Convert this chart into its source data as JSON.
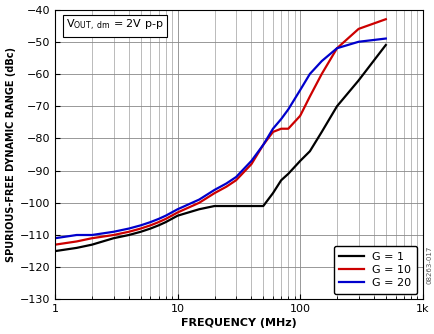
{
  "xlabel": "FREQUENCY (MHz)",
  "ylabel": "SPURIOUS-FREE DYNAMIC RANGE (dBc)",
  "xlim": [
    1,
    1000
  ],
  "ylim": [
    -130,
    -40
  ],
  "yticks": [
    -130,
    -120,
    -110,
    -100,
    -90,
    -80,
    -70,
    -60,
    -50,
    -40
  ],
  "background_color": "#ffffff",
  "grid_color": "#888888",
  "annotation": "V",
  "series": [
    {
      "label": "G = 1",
      "color": "#000000",
      "linewidth": 1.6,
      "freq": [
        1,
        1.5,
        2,
        3,
        4,
        5,
        6,
        7,
        8,
        10,
        15,
        20,
        25,
        30,
        40,
        50,
        60,
        70,
        80,
        100,
        120,
        150,
        200,
        300,
        500
      ],
      "sfdr": [
        -115,
        -114,
        -113,
        -111,
        -110,
        -109,
        -108,
        -107,
        -106,
        -104,
        -102,
        -101,
        -101,
        -101,
        -101,
        -101,
        -97,
        -93,
        -91,
        -87,
        -84,
        -78,
        -70,
        -62,
        -51
      ]
    },
    {
      "label": "G = 10",
      "color": "#cc0000",
      "linewidth": 1.6,
      "freq": [
        1,
        1.5,
        2,
        3,
        4,
        5,
        6,
        7,
        8,
        10,
        15,
        20,
        25,
        30,
        40,
        50,
        60,
        70,
        80,
        100,
        120,
        150,
        200,
        300,
        500
      ],
      "sfdr": [
        -113,
        -112,
        -111,
        -110,
        -109,
        -108,
        -107,
        -106,
        -105,
        -103,
        -100,
        -97,
        -95,
        -93,
        -88,
        -82,
        -78,
        -77,
        -77,
        -73,
        -67,
        -60,
        -52,
        -46,
        -43
      ]
    },
    {
      "label": "G = 20",
      "color": "#0000cc",
      "linewidth": 1.6,
      "freq": [
        1,
        1.5,
        2,
        3,
        4,
        5,
        6,
        7,
        8,
        10,
        15,
        20,
        25,
        30,
        40,
        50,
        60,
        70,
        80,
        100,
        120,
        150,
        200,
        300,
        500
      ],
      "sfdr": [
        -111,
        -110,
        -110,
        -109,
        -108,
        -107,
        -106,
        -105,
        -104,
        -102,
        -99,
        -96,
        -94,
        -92,
        -87,
        -82,
        -77,
        -74,
        -71,
        -65,
        -60,
        -56,
        -52,
        -50,
        -49
      ]
    }
  ],
  "legend_fontsize": 8,
  "watermark": "08263-017",
  "tick_fontsize": 8,
  "label_fontsize": 8,
  "ylabel_fontsize": 7
}
